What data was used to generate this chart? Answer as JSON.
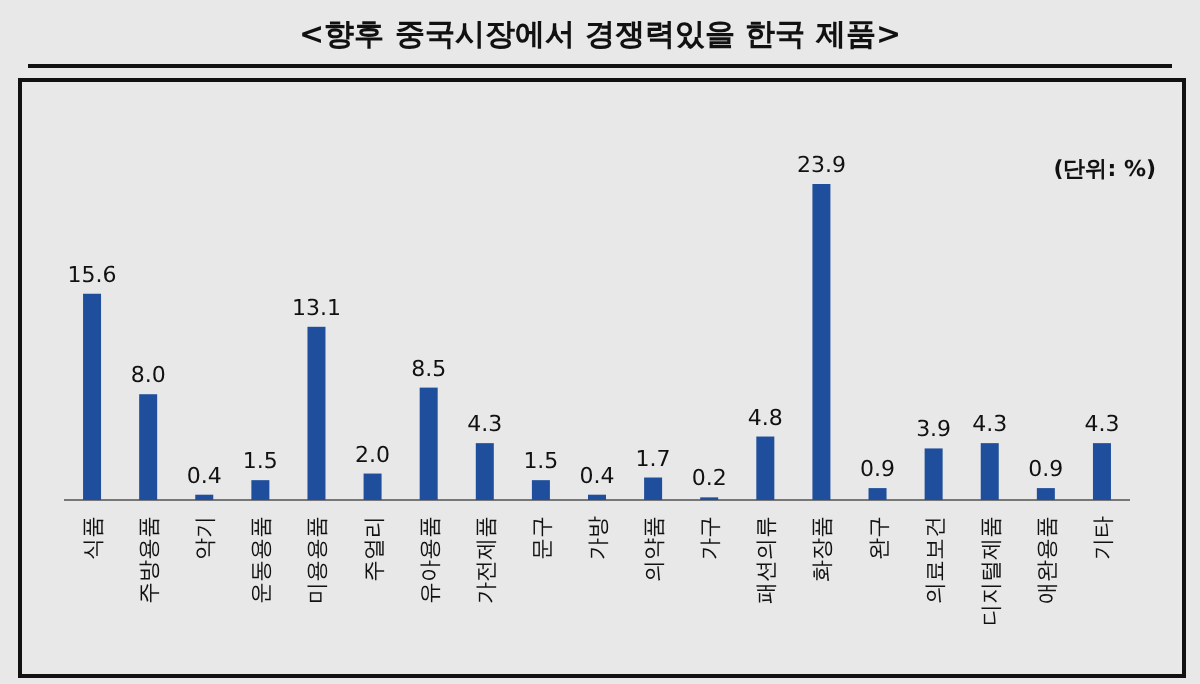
{
  "chart_data": {
    "type": "bar",
    "title": "<향후 중국시장에서 경쟁력있을 한국 제품>",
    "categories": [
      "식품",
      "주방용품",
      "악기",
      "운동용품",
      "미용용품",
      "주얼리",
      "유아용품",
      "가전제품",
      "문구",
      "가방",
      "의약품",
      "가구",
      "패션의류",
      "화장품",
      "완구",
      "의료보건",
      "디지털제품",
      "애완용품",
      "기타"
    ],
    "values": [
      15.6,
      8.0,
      0.4,
      1.5,
      13.1,
      2.0,
      8.5,
      4.3,
      1.5,
      0.4,
      1.7,
      0.2,
      4.8,
      23.9,
      0.9,
      3.9,
      4.3,
      0.9,
      4.3
    ],
    "color": "#1f4e9c",
    "value_labels": [
      "15.6",
      "8.0",
      "0.4",
      "1.5",
      "13.1",
      "2.0",
      "8.5",
      "4.3",
      "1.5",
      "0.4",
      "1.7",
      "0.2",
      "4.8",
      "23.9",
      "0.9",
      "3.9",
      "4.3",
      "0.9",
      "4.3"
    ],
    "annotations": [
      "(단위: %)"
    ]
  }
}
